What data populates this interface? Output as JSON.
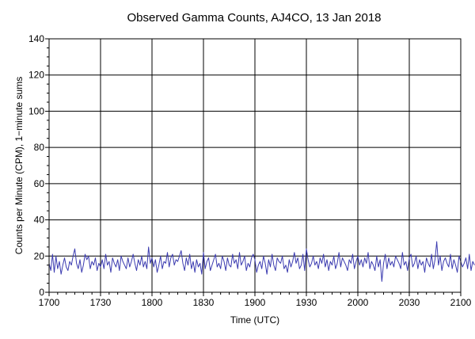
{
  "chart_data": {
    "type": "line",
    "title": "Observed Gamma Counts, AJ4CO, 13 Jan 2018",
    "xlabel": "Time (UTC)",
    "ylabel": "Counts per Minute (CPM), 1−minute sums",
    "xlim": [
      0,
      240
    ],
    "ylim": [
      0,
      140
    ],
    "x_ticks": [
      {
        "minute": 0,
        "label": "1700"
      },
      {
        "minute": 30,
        "label": "1730"
      },
      {
        "minute": 60,
        "label": "1800"
      },
      {
        "minute": 90,
        "label": "1830"
      },
      {
        "minute": 120,
        "label": "1900"
      },
      {
        "minute": 150,
        "label": "1930"
      },
      {
        "minute": 180,
        "label": "2000"
      },
      {
        "minute": 210,
        "label": "2030"
      },
      {
        "minute": 240,
        "label": "2100"
      }
    ],
    "y_ticks": [
      0,
      20,
      40,
      60,
      80,
      100,
      120,
      140
    ],
    "grid": true,
    "line_color": "#3b3bb0",
    "series": [
      {
        "values": [
          16,
          12,
          21,
          11,
          20,
          13,
          17,
          10,
          15,
          19,
          14,
          12,
          17,
          15,
          20,
          24,
          16,
          13,
          18,
          11,
          15,
          21,
          18,
          20,
          13,
          17,
          15,
          19,
          12,
          16,
          14,
          18,
          13,
          21,
          15,
          17,
          11,
          19,
          16,
          14,
          18,
          12,
          20,
          17,
          15,
          13,
          19,
          14,
          17,
          21,
          16,
          12,
          18,
          15,
          20,
          14,
          17,
          13,
          25,
          16,
          19,
          14,
          18,
          11,
          15,
          20,
          13,
          17,
          16,
          22,
          14,
          19,
          21,
          15,
          18,
          17,
          20,
          23,
          16,
          12,
          19,
          15,
          21,
          13,
          17,
          11,
          18,
          14,
          16,
          10,
          22,
          13,
          17,
          19,
          12,
          15,
          18,
          21,
          14,
          16,
          13,
          20,
          17,
          12,
          19,
          15,
          14,
          21,
          16,
          18,
          13,
          22,
          15,
          17,
          20,
          12,
          16,
          14,
          19,
          21,
          18,
          11,
          15,
          17,
          13,
          20,
          16,
          10,
          18,
          14,
          21,
          15,
          12,
          19,
          17,
          16,
          20,
          13,
          15,
          11,
          18,
          14,
          17,
          22,
          16,
          19,
          13,
          15,
          21,
          12,
          24,
          18,
          14,
          16,
          20,
          15,
          17,
          13,
          19,
          16,
          21,
          14,
          18,
          12,
          17,
          15,
          20,
          13,
          16,
          22,
          14,
          19,
          17,
          15,
          12,
          18,
          16,
          21,
          13,
          17,
          20,
          15,
          18,
          14,
          19,
          16,
          22,
          13,
          17,
          15,
          12,
          20,
          14,
          18,
          6,
          16,
          21,
          13,
          19,
          15,
          17,
          14,
          20,
          18,
          16,
          13,
          22,
          15,
          17,
          12,
          19,
          21,
          14,
          16,
          20,
          13,
          18,
          15,
          17,
          11,
          19,
          16,
          14,
          21,
          13,
          18,
          28,
          15,
          20,
          12,
          17,
          19,
          16,
          14,
          21,
          13,
          18,
          15,
          11,
          20,
          17,
          14,
          16,
          19,
          13,
          21,
          12,
          17,
          15
        ]
      }
    ]
  }
}
